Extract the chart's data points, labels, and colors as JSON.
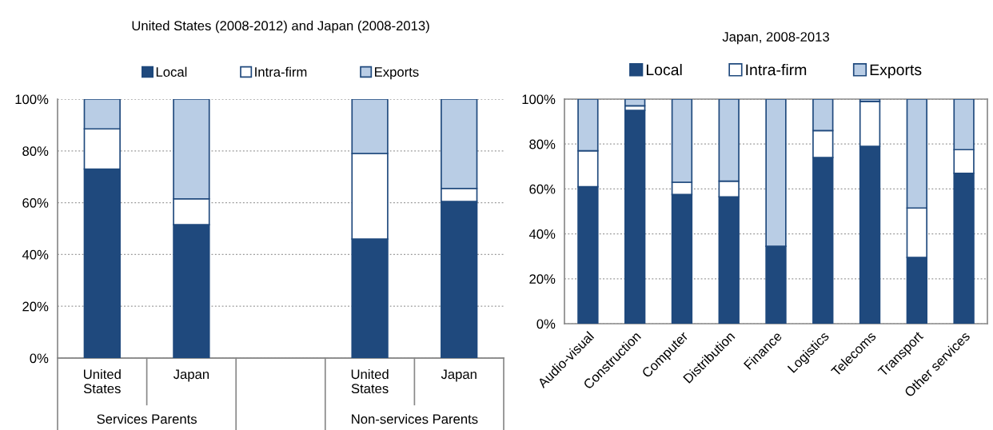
{
  "chart_data": [
    {
      "type": "bar",
      "title": "United States (2008-2012) and Japan (2008-2013)",
      "stacked": true,
      "categories": [
        "United\nStates",
        "Japan",
        null,
        "United\nStates",
        "Japan"
      ],
      "series": [
        {
          "name": "Local",
          "color": "#1f497d",
          "values": [
            73,
            51.5,
            null,
            46,
            60.5
          ]
        },
        {
          "name": "Intra-firm",
          "color": "#ffffff",
          "values": [
            15.5,
            10,
            null,
            33,
            5
          ]
        },
        {
          "name": "Exports",
          "color": "#b9cde5",
          "values": [
            11.5,
            38.5,
            null,
            21,
            34.5
          ]
        }
      ],
      "ylim": [
        0,
        100
      ],
      "yticks": [
        {
          "value": 0,
          "label": "0%"
        },
        {
          "value": 20,
          "label": "20%"
        },
        {
          "value": 40,
          "label": "40%"
        },
        {
          "value": 60,
          "label": "60%"
        },
        {
          "value": 80,
          "label": "80%"
        },
        {
          "value": 100,
          "label": "100%"
        }
      ],
      "grid": "y",
      "legend": "top",
      "annotations": [
        "Services Parents",
        "Non-services Parents"
      ]
    },
    {
      "type": "bar",
      "title": "Japan, 2008-2013",
      "stacked": true,
      "categories": [
        "Audio-visual",
        "Construction",
        "Computer",
        "Distribution",
        "Finance",
        "Logistics",
        "Telecoms",
        "Transport",
        "Other services"
      ],
      "series": [
        {
          "name": "Local",
          "color": "#1f497d",
          "values": [
            61,
            95,
            57.5,
            56.5,
            34.5,
            74,
            79,
            29.5,
            67
          ]
        },
        {
          "name": "Intra-firm",
          "color": "#ffffff",
          "values": [
            16,
            2,
            5.5,
            7,
            0,
            12,
            20,
            22,
            10.5
          ]
        },
        {
          "name": "Exports",
          "color": "#b9cde5",
          "values": [
            23,
            3,
            37,
            36.5,
            65.5,
            14,
            1,
            48.5,
            22.5
          ]
        }
      ],
      "ylim": [
        0,
        100
      ],
      "yticks": [
        {
          "value": 0,
          "label": "0%"
        },
        {
          "value": 20,
          "label": "20%"
        },
        {
          "value": 40,
          "label": "40%"
        },
        {
          "value": 60,
          "label": "60%"
        },
        {
          "value": 80,
          "label": "80%"
        },
        {
          "value": 100,
          "label": "100%"
        }
      ],
      "grid": "y",
      "legend": "top"
    }
  ]
}
